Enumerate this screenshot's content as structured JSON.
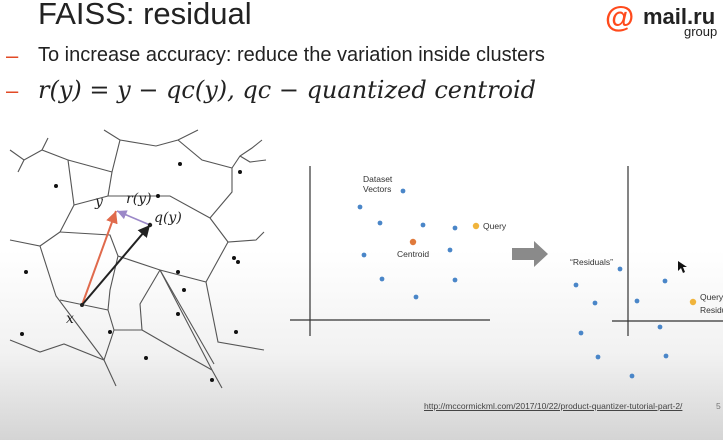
{
  "slide": {
    "title": "FAISS: residual",
    "logo": {
      "symbol": "@",
      "word": "mail.ru",
      "sub": "group"
    },
    "bullets": [
      {
        "marker": "–",
        "text": "To increase accuracy: reduce the variation inside clusters"
      },
      {
        "marker": "–",
        "text": "r(y) = y − q_c(y), q_c − quantized centroid",
        "display": "𝑟(𝑦) = 𝑦  − 𝑞𝑐(𝑦), 𝑞𝑐 − quantized centroid"
      }
    ]
  },
  "voronoi_figure": {
    "labels": {
      "y": "y",
      "r": "r(y)",
      "q": "q(y)",
      "x": "x"
    },
    "colors": {
      "residual_arrow": "#e06a4c",
      "query_arrow": "#222222",
      "r_arrow": "#9b88c8"
    }
  },
  "plot_before": {
    "labels": {
      "dataset": [
        "Dataset",
        "Vectors"
      ],
      "centroid": "Centroid",
      "query": "Query"
    }
  },
  "plot_after": {
    "labels": {
      "residuals": "“Residuals”",
      "query": "Query",
      "residual": "Residual"
    }
  },
  "colors": {
    "bullet": "#e24a26",
    "point": "#4a86c8",
    "centroid": "#e07a3c",
    "query": "#f0b43c",
    "logo_accent": "#ff4a1c"
  },
  "footer": {
    "link": "http://mccormickml.com/2017/10/22/product-quantizer-tutorial-part-2/",
    "page": "5"
  }
}
